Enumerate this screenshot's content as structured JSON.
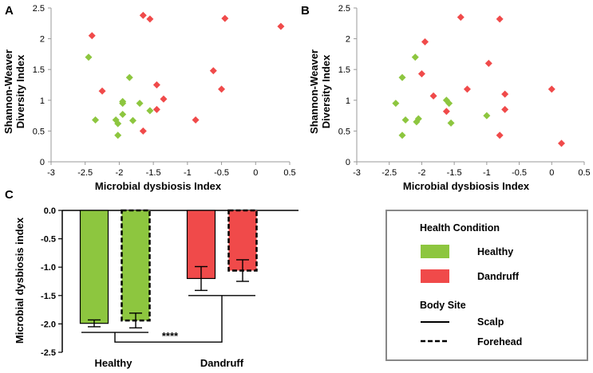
{
  "colors": {
    "healthy": "#8dc63f",
    "dandruff": "#f04a4a",
    "axis": "#999999",
    "bar_axis": "#000000",
    "legend_border": "#888888"
  },
  "chart_data": [
    {
      "panel": "A",
      "type": "scatter",
      "xlabel": "Microbial dysbiosis Index",
      "ylabel_lines": [
        "Shannon-Weaver",
        "Diversity Index"
      ],
      "xlim": [
        -3,
        0.5
      ],
      "ylim": [
        0,
        2.5
      ],
      "xticks": [
        "-3",
        "-2.5",
        "-2",
        "-1.5",
        "-1",
        "-0.5",
        "0",
        "0.5"
      ],
      "yticks": [
        "0",
        "0.5",
        "1",
        "1.5",
        "2",
        "2.5"
      ],
      "series": [
        {
          "name": "Healthy",
          "color": "#8dc63f",
          "points": [
            [
              -2.45,
              1.7
            ],
            [
              -2.35,
              0.68
            ],
            [
              -2.05,
              0.68
            ],
            [
              -2.02,
              0.62
            ],
            [
              -2.02,
              0.43
            ],
            [
              -1.95,
              0.98
            ],
            [
              -1.95,
              0.95
            ],
            [
              -1.95,
              0.77
            ],
            [
              -1.85,
              1.37
            ],
            [
              -1.8,
              0.67
            ],
            [
              -1.7,
              0.95
            ],
            [
              -1.55,
              0.83
            ]
          ]
        },
        {
          "name": "Dandruff",
          "color": "#f04a4a",
          "points": [
            [
              -2.4,
              2.05
            ],
            [
              -2.25,
              1.15
            ],
            [
              -1.65,
              2.38
            ],
            [
              -1.55,
              2.32
            ],
            [
              -1.65,
              0.5
            ],
            [
              -1.45,
              1.25
            ],
            [
              -1.45,
              0.85
            ],
            [
              -1.35,
              1.02
            ],
            [
              -0.88,
              0.68
            ],
            [
              -0.62,
              1.48
            ],
            [
              -0.5,
              1.18
            ],
            [
              -0.45,
              2.33
            ],
            [
              0.37,
              2.2
            ]
          ]
        }
      ]
    },
    {
      "panel": "B",
      "type": "scatter",
      "xlabel": "Microbial dysbiosis Index",
      "ylabel_lines": [
        "Shannon-Weaver",
        "Diversity Index"
      ],
      "xlim": [
        -3,
        0.5
      ],
      "ylim": [
        0,
        2.5
      ],
      "xticks": [
        "-3",
        "-2.5",
        "-2",
        "-1.5",
        "-1",
        "-0.5",
        "0",
        "0.5"
      ],
      "yticks": [
        "0",
        "0.5",
        "1",
        "1.5",
        "2",
        "2.5"
      ],
      "series": [
        {
          "name": "Healthy",
          "color": "#8dc63f",
          "points": [
            [
              -2.4,
              0.95
            ],
            [
              -2.3,
              1.37
            ],
            [
              -2.3,
              0.43
            ],
            [
              -2.25,
              0.68
            ],
            [
              -2.1,
              1.7
            ],
            [
              -2.08,
              0.65
            ],
            [
              -2.05,
              0.7
            ],
            [
              -1.62,
              1.0
            ],
            [
              -1.58,
              0.95
            ],
            [
              -1.55,
              0.63
            ],
            [
              -1.0,
              0.75
            ]
          ]
        },
        {
          "name": "Dandruff",
          "color": "#f04a4a",
          "points": [
            [
              -1.95,
              1.95
            ],
            [
              -2.0,
              1.43
            ],
            [
              -1.82,
              1.07
            ],
            [
              -1.62,
              0.82
            ],
            [
              -1.4,
              2.35
            ],
            [
              -1.3,
              1.18
            ],
            [
              -0.97,
              1.6
            ],
            [
              -0.8,
              2.32
            ],
            [
              -0.8,
              0.43
            ],
            [
              -0.72,
              1.1
            ],
            [
              -0.72,
              0.85
            ],
            [
              0.0,
              1.18
            ],
            [
              0.15,
              0.3
            ]
          ]
        }
      ]
    },
    {
      "panel": "C",
      "type": "bar",
      "ylabel": "Microbial dysbiosis index",
      "categories": [
        "Healthy",
        "Dandruff"
      ],
      "ylim": [
        -2.5,
        0
      ],
      "yticks": [
        "0.0",
        "-0.5",
        "-1.0",
        "-1.5",
        "-2.0",
        "-2.5"
      ],
      "series": [
        {
          "name": "Scalp",
          "style": "solid",
          "values": [
            -1.99,
            -1.2
          ],
          "errors": [
            0.06,
            0.21
          ]
        },
        {
          "name": "Forehead",
          "style": "dashed",
          "values": [
            -1.94,
            -1.06
          ],
          "errors": [
            0.13,
            0.19
          ]
        }
      ],
      "significance": "****"
    }
  ],
  "legend": {
    "title": "Health Condition",
    "items": [
      {
        "label": "Healthy",
        "color": "#8dc63f"
      },
      {
        "label": "Dandruff",
        "color": "#f04a4a"
      }
    ],
    "site_title": "Body Site",
    "sites": [
      {
        "label": "Scalp",
        "style": "solid"
      },
      {
        "label": "Forehead",
        "style": "dashed"
      }
    ]
  }
}
